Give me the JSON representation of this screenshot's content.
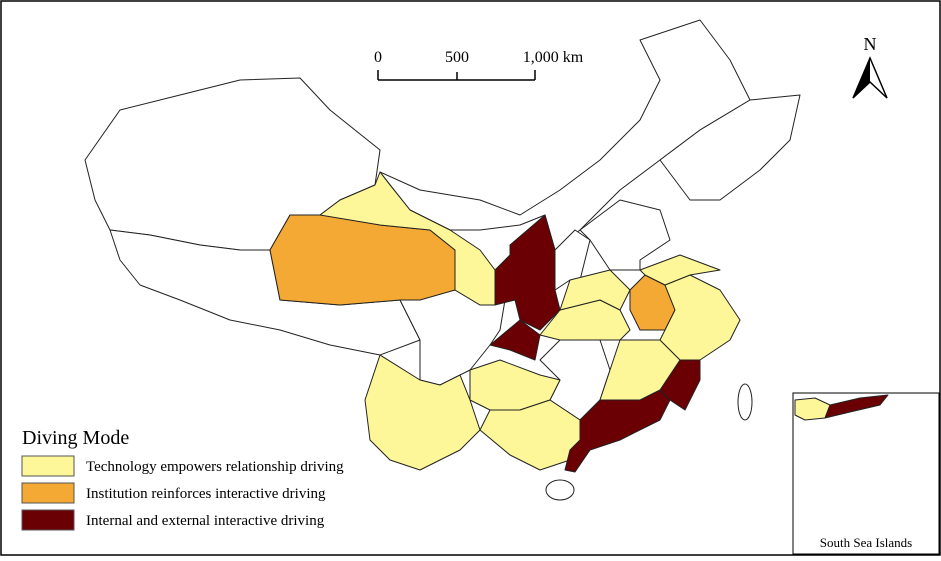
{
  "scale_bar": {
    "labels": [
      "0",
      "500",
      "1,000 km"
    ]
  },
  "north_arrow": "N",
  "legend": {
    "title": "Diving Mode",
    "items": [
      {
        "label": "Technology empowers relationship driving",
        "color": "#fdf799"
      },
      {
        "label": "Institution reinforces interactive driving",
        "color": "#f4a934"
      },
      {
        "label": "Internal and external interactive driving",
        "color": "#6b0004"
      }
    ]
  },
  "inset": {
    "label": "South Sea Islands"
  }
}
